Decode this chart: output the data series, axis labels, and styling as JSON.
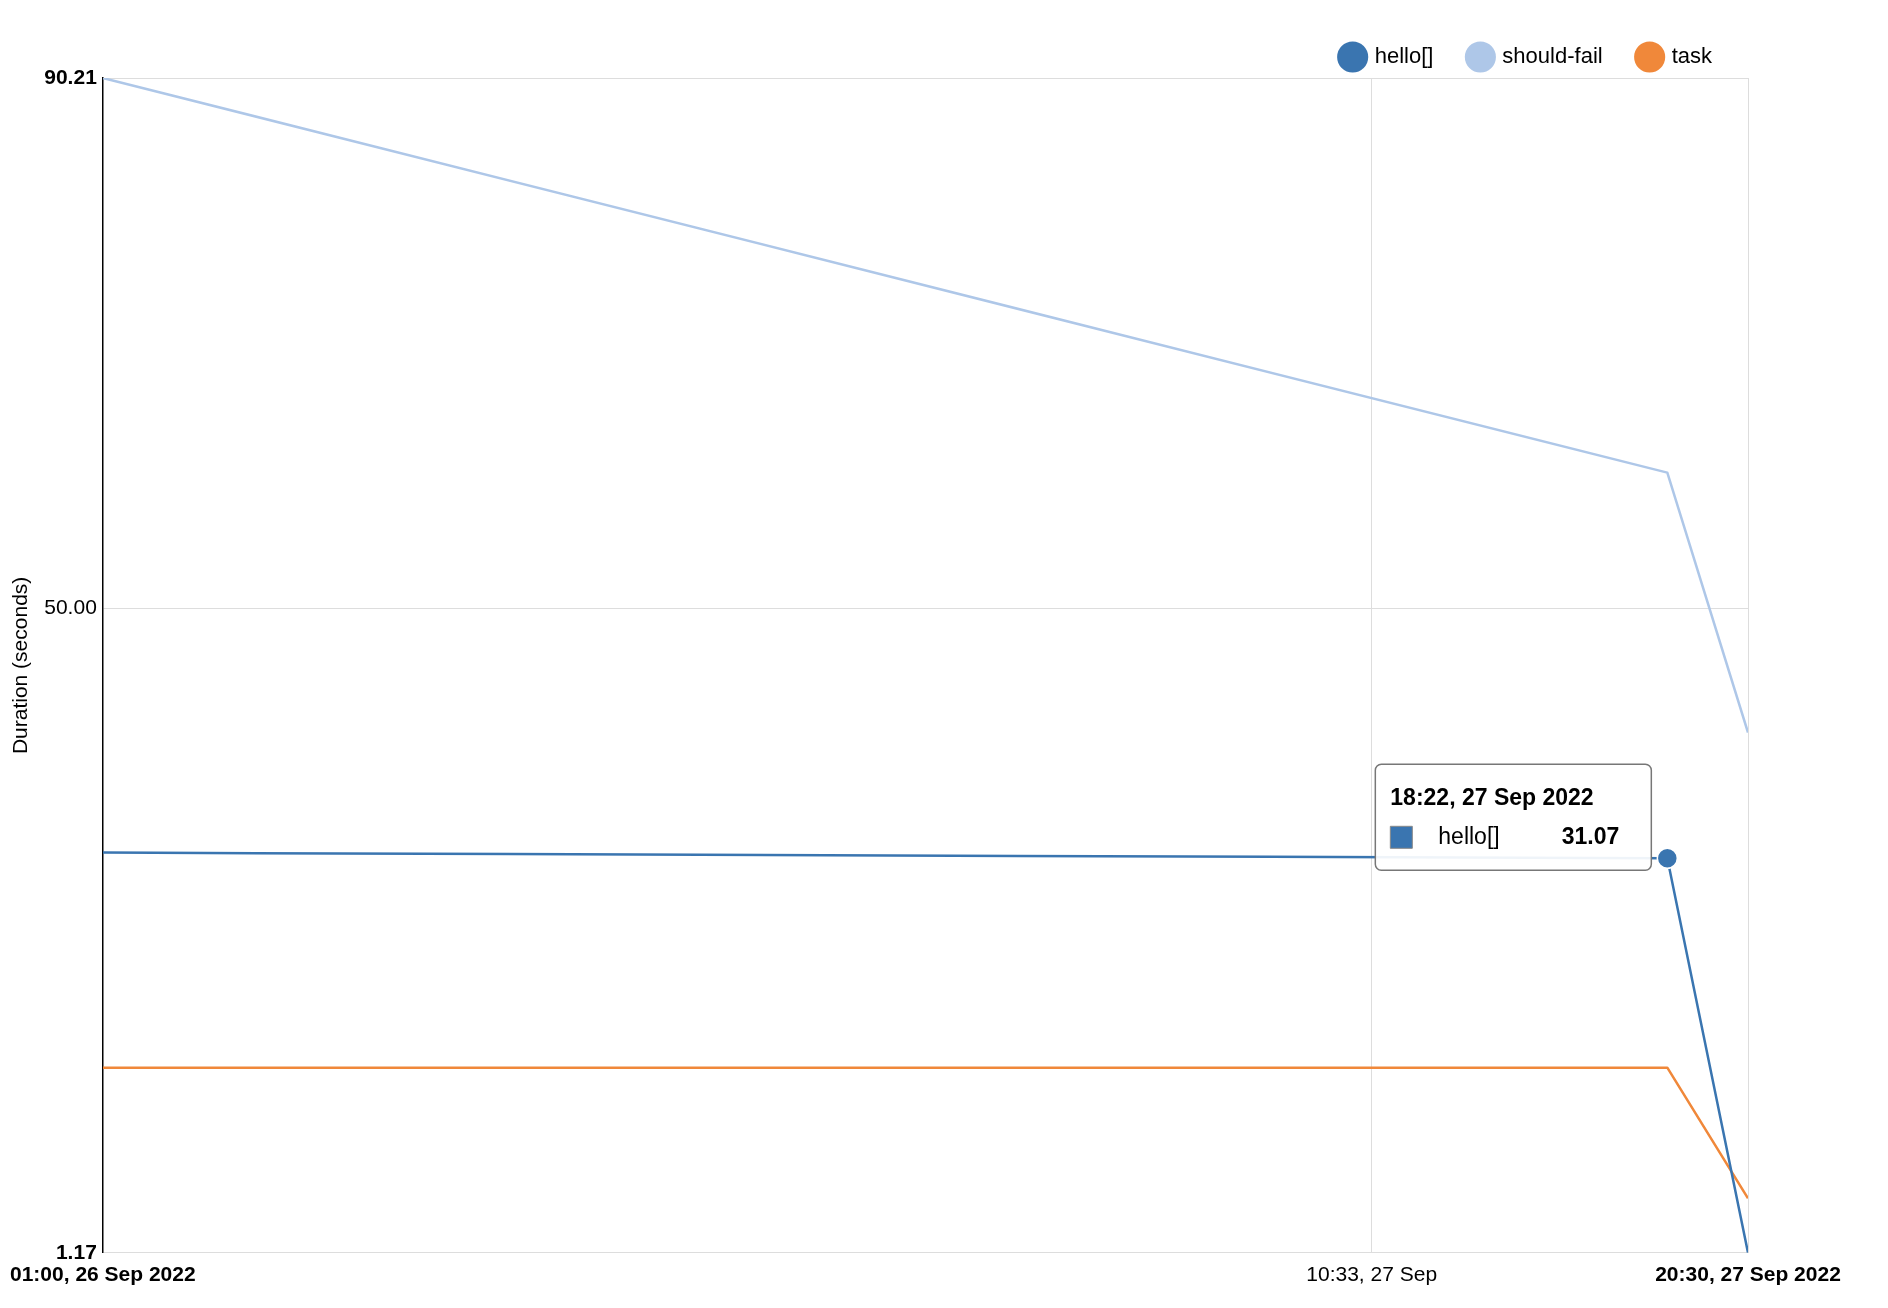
{
  "chart_data": {
    "type": "line",
    "ylabel": "Duration (seconds)",
    "series": [
      {
        "name": "hello[]",
        "color": "#3a75b0",
        "x": [
          "2022-09-26T01:00",
          "2022-09-27T18:22",
          "2022-09-27T20:30"
        ],
        "values": [
          31.5,
          31.07,
          1.17
        ],
        "value_labels": [
          null,
          "31.07",
          null
        ]
      },
      {
        "name": "should-fail",
        "color": "#aec7e8",
        "x": [
          "2022-09-26T01:00",
          "2022-09-27T18:22",
          "2022-09-27T20:30"
        ],
        "values": [
          90.21,
          60.3,
          40.6
        ]
      },
      {
        "name": "task",
        "color": "#f0883a",
        "x": [
          "2022-09-26T01:00",
          "2022-09-27T18:22",
          "2022-09-27T20:30"
        ],
        "values": [
          15.2,
          15.2,
          5.3
        ]
      }
    ],
    "annotations": [
      "18:22, 27 Sep 2022"
    ],
    "xlim": [
      "2022-09-26T01:00",
      "2022-09-27T20:30"
    ],
    "xticks": [
      {
        "value": "2022-09-26T01:00",
        "label": "01:00, 26 Sep 2022"
      },
      {
        "value": "2022-09-27T10:33",
        "label": "10:33, 27 Sep"
      },
      {
        "value": "2022-09-27T20:30",
        "label": "20:30, 27 Sep 2022"
      }
    ],
    "ylim": [
      1.17,
      90.21
    ],
    "yticks": [
      {
        "value": 1.17,
        "label": "1.17"
      },
      {
        "value": 50,
        "label": "50.00"
      },
      {
        "value": 90.21,
        "label": "90.21"
      }
    ],
    "grid": true,
    "legend": "top right",
    "marker": "none",
    "line_style": "solid"
  }
}
